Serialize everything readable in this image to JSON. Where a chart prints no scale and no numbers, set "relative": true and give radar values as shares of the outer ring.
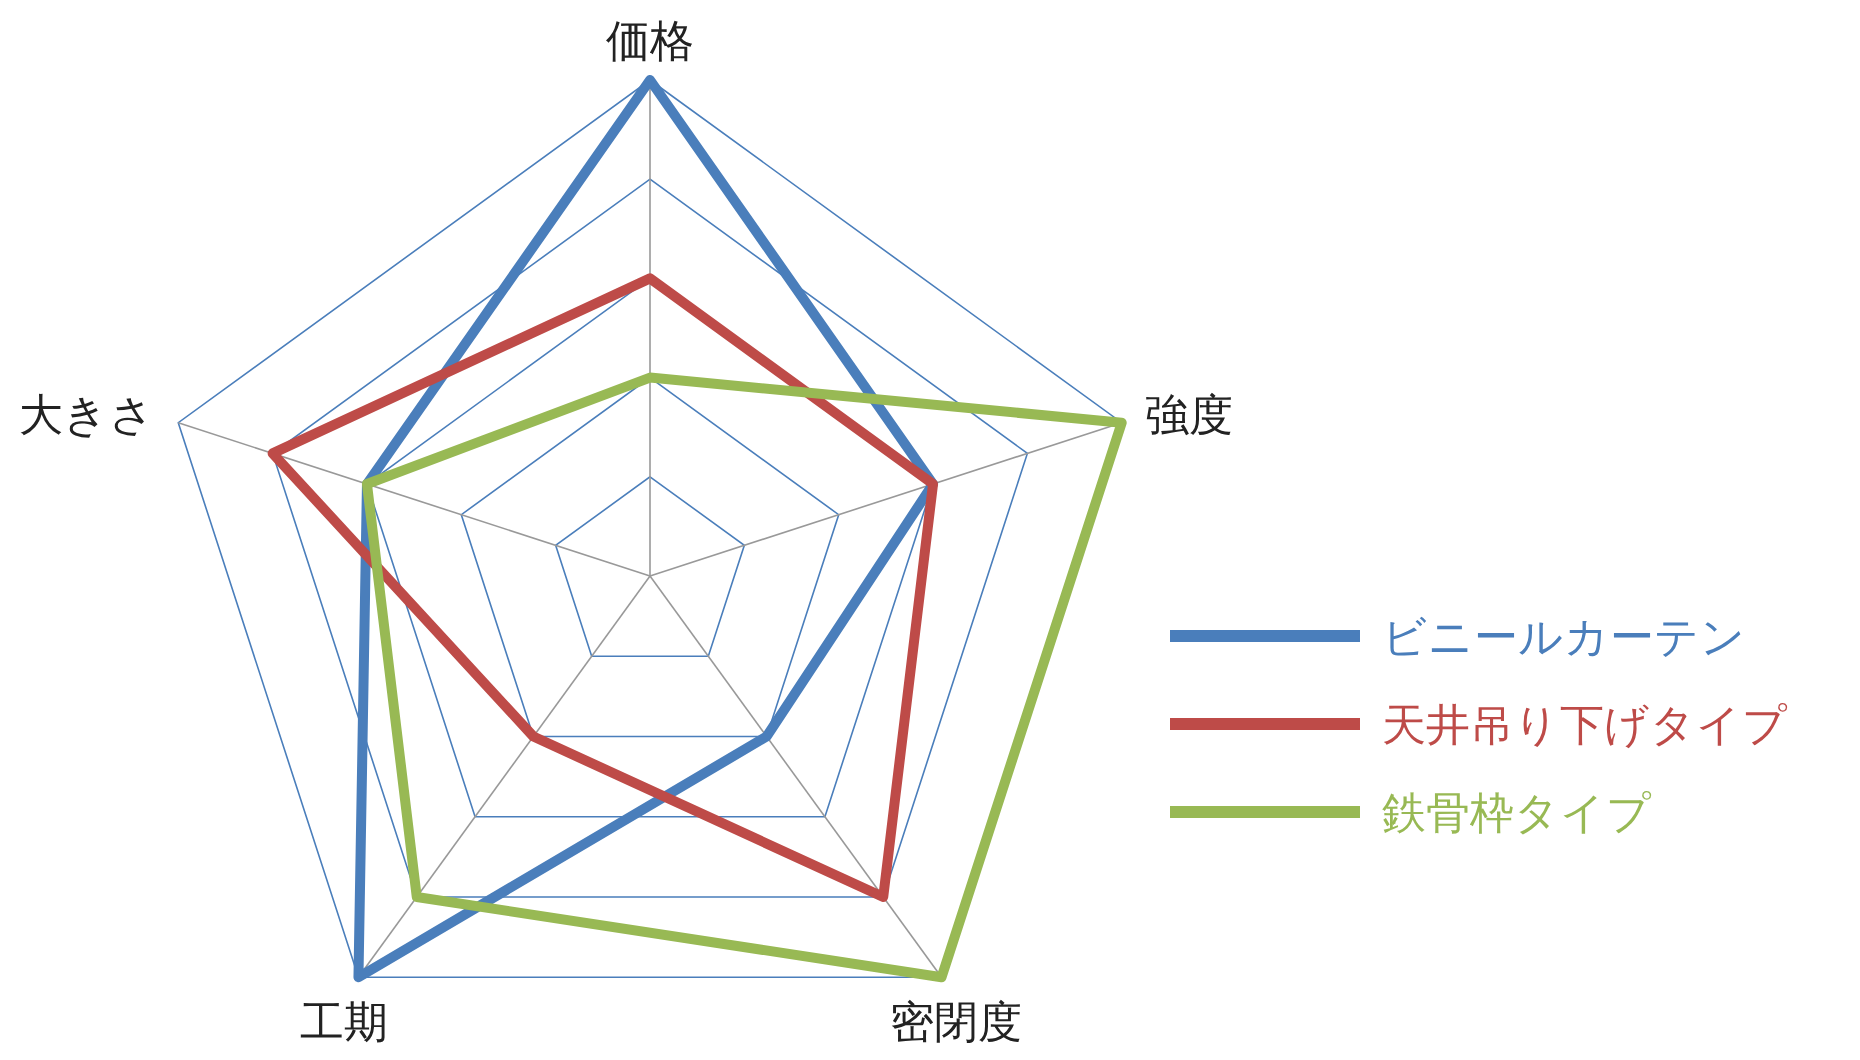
{
  "chart_data": {
    "type": "radar",
    "relative": true,
    "grid": true,
    "legend": "right",
    "categories": [
      "価格",
      "強度",
      "密閉度",
      "工期",
      "大きさ"
    ],
    "series": [
      {
        "name": "ビニールカーテン",
        "color": "#4a7ebb",
        "values": [
          1.0,
          0.6,
          0.4,
          1.0,
          0.6
        ]
      },
      {
        "name": "天井吊り下げタイプ",
        "color": "#be4b48",
        "values": [
          0.6,
          0.6,
          0.8,
          0.4,
          0.8
        ]
      },
      {
        "name": "鉄骨枠タイプ",
        "color": "#98b954",
        "values": [
          0.4,
          1.0,
          1.0,
          0.8,
          0.6
        ]
      }
    ]
  }
}
